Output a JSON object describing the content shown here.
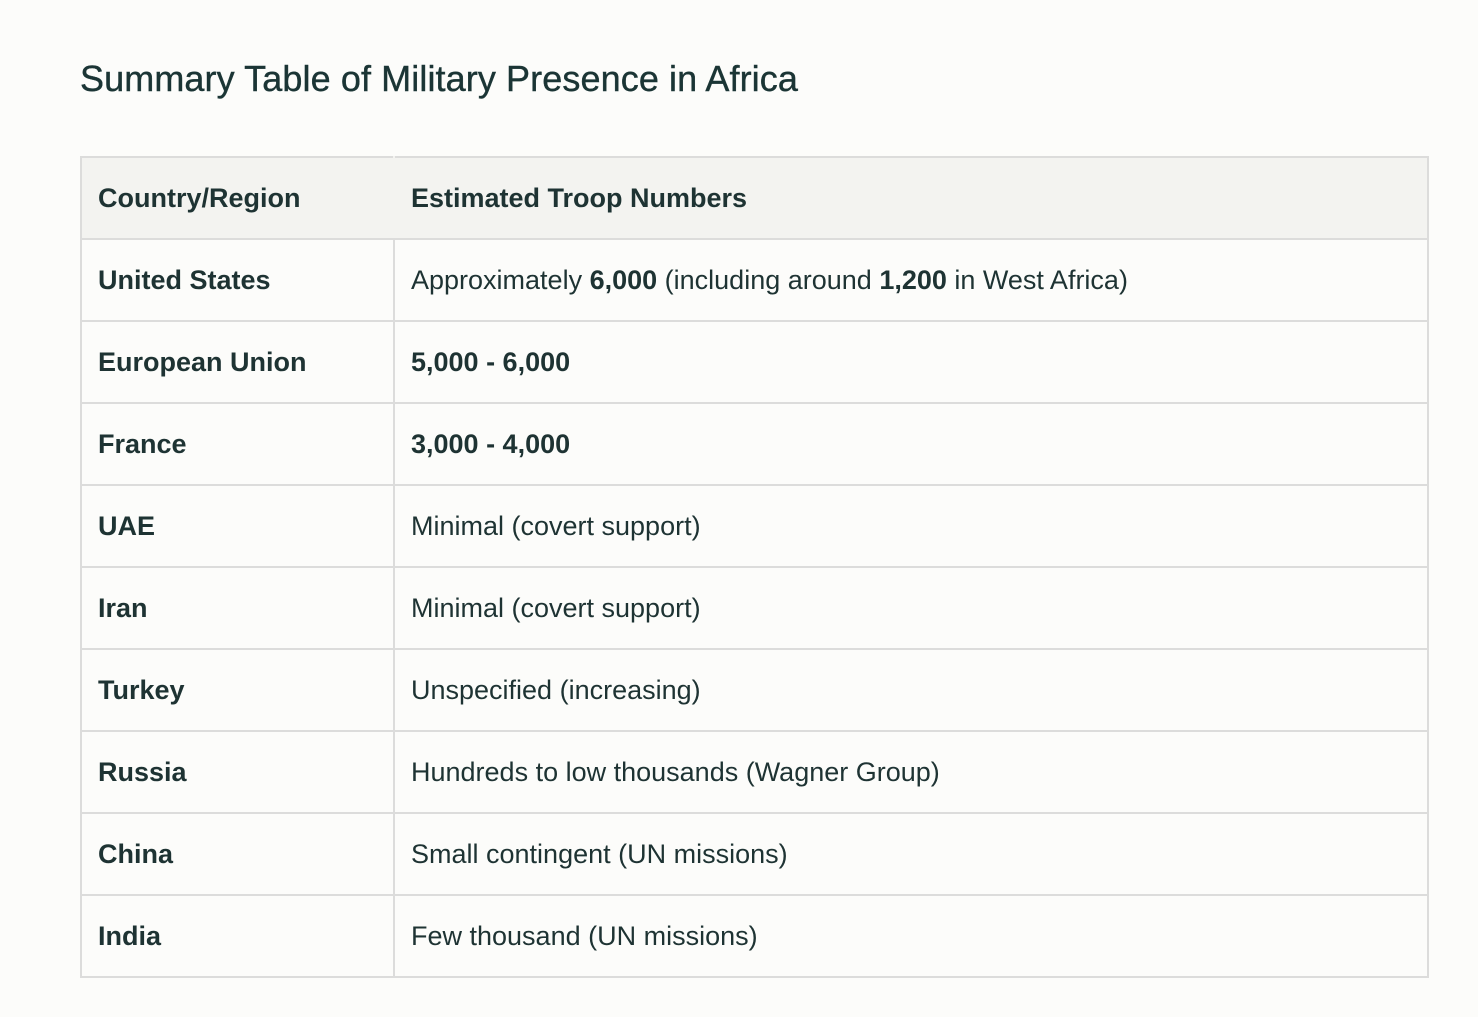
{
  "title": "Summary Table of Military Presence in Africa",
  "table": {
    "headers": [
      "Country/Region",
      "Estimated Troop Numbers"
    ],
    "rows": [
      {
        "country": "United States",
        "troops_parts": [
          {
            "text": "Approximately ",
            "bold": false
          },
          {
            "text": "6,000",
            "bold": true
          },
          {
            "text": " (including around ",
            "bold": false
          },
          {
            "text": "1,200",
            "bold": true
          },
          {
            "text": " in West Africa)",
            "bold": false
          }
        ]
      },
      {
        "country": "European Union",
        "troops_parts": [
          {
            "text": "5,000 - 6,000",
            "bold": true
          }
        ]
      },
      {
        "country": "France",
        "troops_parts": [
          {
            "text": "3,000 - 4,000",
            "bold": true
          }
        ]
      },
      {
        "country": "UAE",
        "troops_parts": [
          {
            "text": "Minimal (covert support)",
            "bold": false
          }
        ]
      },
      {
        "country": "Iran",
        "troops_parts": [
          {
            "text": "Minimal (covert support)",
            "bold": false
          }
        ]
      },
      {
        "country": "Turkey",
        "troops_parts": [
          {
            "text": "Unspecified (increasing)",
            "bold": false
          }
        ]
      },
      {
        "country": "Russia",
        "troops_parts": [
          {
            "text": "Hundreds to low thousands (Wagner Group)",
            "bold": false
          }
        ]
      },
      {
        "country": "China",
        "troops_parts": [
          {
            "text": "Small contingent (UN missions)",
            "bold": false
          }
        ]
      },
      {
        "country": "India",
        "troops_parts": [
          {
            "text": "Few thousand (UN missions)",
            "bold": false
          }
        ]
      }
    ]
  }
}
